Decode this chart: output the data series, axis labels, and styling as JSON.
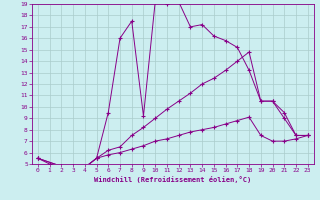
{
  "xlabel": "Windchill (Refroidissement éolien,°C)",
  "bg_color": "#cceef0",
  "grid_color": "#aacccc",
  "line_color": "#880088",
  "xlim": [
    -0.5,
    23.5
  ],
  "ylim": [
    5,
    19
  ],
  "xticks": [
    0,
    1,
    2,
    3,
    4,
    5,
    6,
    7,
    8,
    9,
    10,
    11,
    12,
    13,
    14,
    15,
    16,
    17,
    18,
    19,
    20,
    21,
    22,
    23
  ],
  "yticks": [
    5,
    6,
    7,
    8,
    9,
    10,
    11,
    12,
    13,
    14,
    15,
    16,
    17,
    18,
    19
  ],
  "line1_x": [
    0,
    1,
    2,
    3,
    4,
    5,
    6,
    7,
    8,
    9,
    10,
    11,
    12,
    13,
    14,
    15,
    16,
    17,
    18,
    19,
    20,
    21,
    22,
    23
  ],
  "line1_y": [
    5.5,
    5.0,
    4.8,
    4.8,
    4.7,
    5.5,
    9.5,
    16.0,
    17.5,
    9.2,
    19.2,
    19.0,
    19.2,
    17.0,
    17.2,
    16.2,
    15.8,
    15.2,
    13.2,
    10.5,
    10.5,
    9.5,
    7.5,
    7.5
  ],
  "line2_x": [
    0,
    2,
    3,
    4,
    5,
    6,
    7,
    8,
    9,
    10,
    11,
    12,
    13,
    14,
    15,
    16,
    17,
    18,
    19,
    20,
    21,
    22,
    23
  ],
  "line2_y": [
    5.5,
    4.8,
    4.8,
    4.7,
    5.5,
    6.2,
    6.5,
    7.5,
    8.2,
    9.0,
    9.8,
    10.5,
    11.2,
    12.0,
    12.5,
    13.2,
    14.0,
    14.8,
    10.5,
    10.5,
    9.0,
    7.5,
    7.5
  ],
  "line3_x": [
    0,
    2,
    3,
    4,
    5,
    6,
    7,
    8,
    9,
    10,
    11,
    12,
    13,
    14,
    15,
    16,
    17,
    18,
    19,
    20,
    21,
    22,
    23
  ],
  "line3_y": [
    5.5,
    4.8,
    4.8,
    4.7,
    5.5,
    5.8,
    6.0,
    6.3,
    6.6,
    7.0,
    7.2,
    7.5,
    7.8,
    8.0,
    8.2,
    8.5,
    8.8,
    9.1,
    7.5,
    7.0,
    7.0,
    7.2,
    7.5
  ]
}
